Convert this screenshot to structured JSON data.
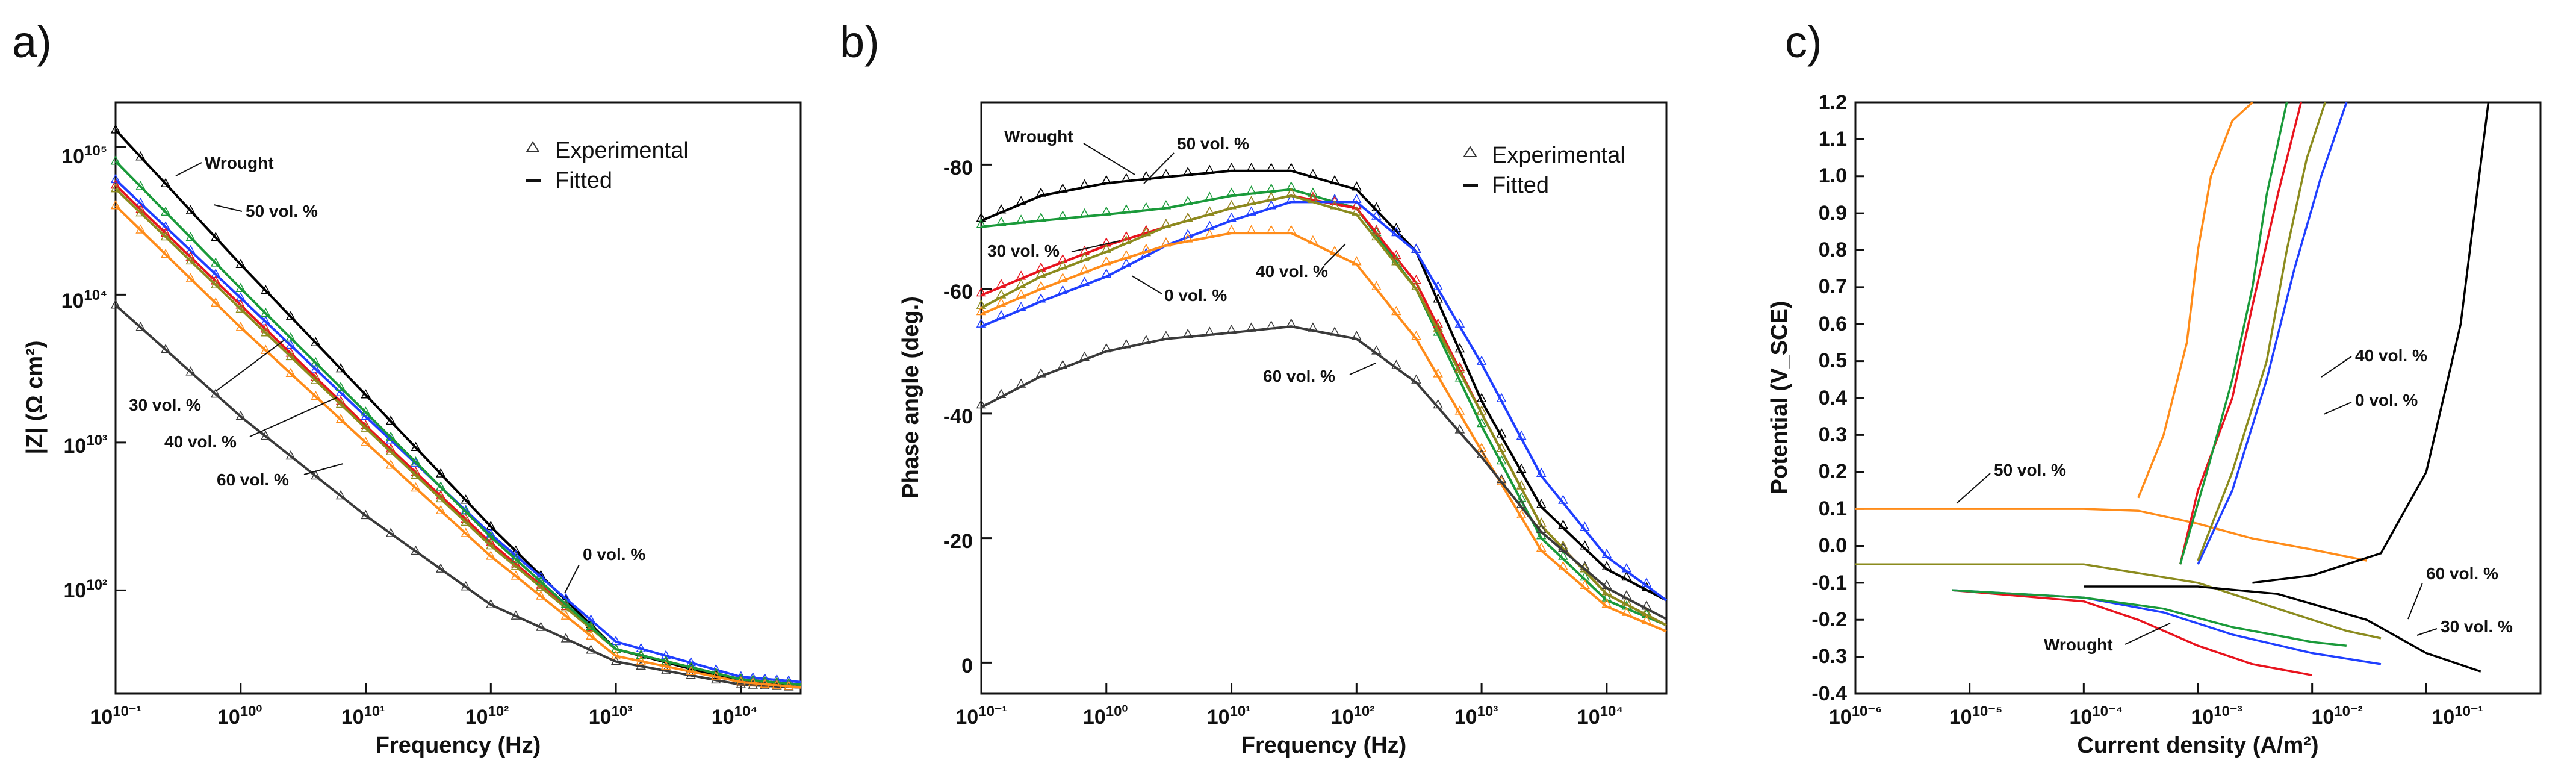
{
  "panel_labels": [
    "a)",
    "b)",
    "c)"
  ],
  "chart_data": [
    {
      "type": "line",
      "panel": "a)",
      "title": "",
      "xlabel": "Frequency (Hz)",
      "ylabel": "|Z| (Ω cm²)",
      "x_scale": "log",
      "y_scale": "log",
      "xlim": [
        0.1,
        30000
      ],
      "ylim": [
        20,
        200000
      ],
      "x_tick_labels": [
        "10⁻¹",
        "10⁰",
        "10¹",
        "10²",
        "10³",
        "10⁴"
      ],
      "y_tick_labels": [
        "10²",
        "10³",
        "10⁴",
        "10⁵"
      ],
      "legend": [
        {
          "label": "Experimental",
          "marker": "triangle-open"
        },
        {
          "label": "Fitted",
          "marker": "line"
        }
      ],
      "legend_position": "top-right",
      "series": [
        {
          "name": "Wrought",
          "color": "#000000",
          "x": [
            0.1,
            1,
            10,
            100,
            1000,
            10000,
            30000
          ],
          "y": [
            130000,
            16000,
            2100,
            270,
            40,
            24,
            23
          ]
        },
        {
          "name": "0 vol. %",
          "color": "#1f3fff",
          "x": [
            0.1,
            1,
            10,
            100,
            1000,
            10000,
            30000
          ],
          "y": [
            60000,
            9500,
            1500,
            240,
            45,
            26,
            24
          ]
        },
        {
          "name": "30 vol. %",
          "color": "#e8141e",
          "x": [
            0.1,
            1,
            10,
            100,
            1000,
            10000,
            30000
          ],
          "y": [
            55000,
            8500,
            1300,
            210,
            40,
            25,
            23
          ]
        },
        {
          "name": "40 vol. %",
          "color": "#8b8b1e",
          "x": [
            0.1,
            1,
            10,
            100,
            1000,
            10000,
            30000
          ],
          "y": [
            52000,
            8000,
            1250,
            200,
            40,
            25,
            23
          ]
        },
        {
          "name": "50 vol. %",
          "color": "#1a9a3a",
          "x": [
            0.1,
            1,
            10,
            100,
            1000,
            10000,
            30000
          ],
          "y": [
            80000,
            11000,
            1600,
            230,
            40,
            25,
            23
          ]
        },
        {
          "name": "60 vol. %",
          "color": "#3a3a3a",
          "x": [
            0.1,
            1,
            10,
            100,
            1000,
            10000,
            30000
          ],
          "y": [
            8500,
            1500,
            320,
            80,
            33,
            23,
            22
          ]
        },
        {
          "name": "orange (unlabeled)",
          "color": "#ff8c1a",
          "x": [
            0.1,
            1,
            10,
            100,
            1000,
            10000,
            30000
          ],
          "y": [
            40000,
            6000,
            1000,
            170,
            36,
            24,
            22
          ]
        }
      ],
      "annotations": [
        "Wrought",
        "50 vol. %",
        "30 vol. %",
        "40 vol. %",
        "60 vol. %",
        "0 vol. %"
      ]
    },
    {
      "type": "line",
      "panel": "b)",
      "title": "",
      "xlabel": "Frequency (Hz)",
      "ylabel": "Phase angle (deg.)",
      "x_scale": "log",
      "y_scale": "linear",
      "xlim": [
        0.1,
        30000
      ],
      "ylim": [
        5,
        -90
      ],
      "x_tick_labels": [
        "10⁻¹",
        "10⁰",
        "10¹",
        "10²",
        "10³",
        "10⁴"
      ],
      "y_tick_labels": [
        "-80",
        "-60",
        "-40",
        "-20",
        "0"
      ],
      "legend": [
        {
          "label": "Experimental",
          "marker": "triangle-open"
        },
        {
          "label": "Fitted",
          "marker": "line"
        }
      ],
      "legend_position": "top-right",
      "series": [
        {
          "name": "Wrought",
          "color": "#000000",
          "x": [
            0.1,
            0.3,
            1,
            3,
            10,
            30,
            100,
            300,
            1000,
            3000,
            10000,
            30000
          ],
          "y": [
            -71,
            -75,
            -77,
            -78,
            -79,
            -79,
            -76,
            -66,
            -42,
            -25,
            -15,
            -10
          ]
        },
        {
          "name": "50 vol. %",
          "color": "#1a9a3a",
          "x": [
            0.1,
            0.3,
            1,
            3,
            10,
            30,
            100,
            300,
            1000,
            3000,
            10000,
            30000
          ],
          "y": [
            -70,
            -71,
            -72,
            -73,
            -75,
            -76,
            -73,
            -60,
            -38,
            -20,
            -10,
            -6
          ]
        },
        {
          "name": "30 vol. %",
          "color": "#e8141e",
          "x": [
            0.1,
            0.3,
            1,
            3,
            10,
            30,
            100,
            300,
            1000,
            3000,
            10000,
            30000
          ],
          "y": [
            -59,
            -63,
            -67,
            -70,
            -73,
            -75,
            -73,
            -61,
            -40,
            -22,
            -11,
            -6
          ]
        },
        {
          "name": "0 vol. %",
          "color": "#1f3fff",
          "x": [
            0.1,
            0.3,
            1,
            3,
            10,
            30,
            100,
            300,
            1000,
            3000,
            10000,
            30000
          ],
          "y": [
            -54,
            -58,
            -62,
            -67,
            -71,
            -74,
            -74,
            -66,
            -48,
            -30,
            -17,
            -10
          ]
        },
        {
          "name": "40 vol. %",
          "color": "#8b8b1e",
          "x": [
            0.1,
            0.3,
            1,
            3,
            10,
            30,
            100,
            300,
            1000,
            3000,
            10000,
            30000
          ],
          "y": [
            -57,
            -62,
            -66,
            -70,
            -73,
            -75,
            -72,
            -60,
            -40,
            -22,
            -11,
            -6
          ]
        },
        {
          "name": "orange (unlabeled)",
          "color": "#ff8c1a",
          "x": [
            0.1,
            0.3,
            1,
            3,
            10,
            30,
            100,
            300,
            1000,
            3000,
            10000,
            30000
          ],
          "y": [
            -56,
            -60,
            -64,
            -67,
            -69,
            -69,
            -64,
            -52,
            -34,
            -18,
            -9,
            -5
          ]
        },
        {
          "name": "60 vol. %",
          "color": "#3a3a3a",
          "x": [
            0.1,
            0.3,
            1,
            3,
            10,
            30,
            100,
            300,
            1000,
            3000,
            10000,
            30000
          ],
          "y": [
            -41,
            -46,
            -50,
            -52,
            -53,
            -54,
            -52,
            -45,
            -33,
            -21,
            -12,
            -7
          ]
        }
      ],
      "annotations": [
        "Wrought",
        "50 vol. %",
        "30 vol. %",
        "0 vol. %",
        "40 vol. %",
        "60 vol. %"
      ]
    },
    {
      "type": "line",
      "panel": "c)",
      "title": "",
      "xlabel": "Current density (A/m²)",
      "ylabel": "Potential (V_SCE)",
      "x_scale": "log",
      "y_scale": "linear",
      "xlim": [
        1e-06,
        1
      ],
      "ylim": [
        -0.4,
        1.2
      ],
      "x_tick_labels": [
        "10⁻⁶",
        "10⁻⁵",
        "10⁻⁴",
        "10⁻³",
        "10⁻²",
        "10⁻¹"
      ],
      "y_tick_labels": [
        "-0.4",
        "-0.3",
        "-0.2",
        "-0.1",
        "0.0",
        "0.1",
        "0.2",
        "0.3",
        "0.4",
        "0.5",
        "0.6",
        "0.7",
        "0.8",
        "0.9",
        "1.0",
        "1.1",
        "1.2"
      ],
      "series": [
        {
          "name": "50 vol. %",
          "color": "#ff8c1a",
          "cathodic": {
            "x": [
              1e-06,
              0.0001,
              0.0003,
              0.001,
              0.003,
              0.01,
              0.03
            ],
            "y": [
              0.1,
              0.1,
              0.095,
              0.06,
              0.02,
              -0.01,
              -0.04
            ]
          },
          "anodic": {
            "x": [
              0.0003,
              0.0005,
              0.0008,
              0.001,
              0.0013,
              0.002,
              0.003
            ],
            "y": [
              0.13,
              0.3,
              0.55,
              0.8,
              1.0,
              1.15,
              1.2
            ]
          }
        },
        {
          "name": "Wrought",
          "color": "#e8141e",
          "cathodic": {
            "x": [
              7e-06,
              0.0001,
              0.0003,
              0.001,
              0.003,
              0.01
            ],
            "y": [
              -0.12,
              -0.15,
              -0.2,
              -0.27,
              -0.32,
              -0.35
            ]
          },
          "anodic": {
            "x": [
              0.0007,
              0.001,
              0.002,
              0.003,
              0.005,
              0.008
            ],
            "y": [
              -0.05,
              0.15,
              0.4,
              0.65,
              0.95,
              1.2
            ]
          }
        },
        {
          "name": "0 vol. %",
          "color": "#1f3fff",
          "cathodic": {
            "x": [
              7e-06,
              0.0001,
              0.0005,
              0.002,
              0.01,
              0.04
            ],
            "y": [
              -0.12,
              -0.14,
              -0.18,
              -0.24,
              -0.29,
              -0.32
            ]
          },
          "anodic": {
            "x": [
              0.001,
              0.002,
              0.004,
              0.007,
              0.012,
              0.02
            ],
            "y": [
              -0.05,
              0.15,
              0.45,
              0.75,
              1.0,
              1.2
            ]
          }
        },
        {
          "name": "30 vol. %",
          "color": "#1a9a3a",
          "cathodic": {
            "x": [
              7e-06,
              0.0001,
              0.0005,
              0.002,
              0.01,
              0.02
            ],
            "y": [
              -0.12,
              -0.14,
              -0.17,
              -0.22,
              -0.26,
              -0.27
            ]
          },
          "anodic": {
            "x": [
              0.0007,
              0.0012,
              0.002,
              0.003,
              0.004,
              0.006
            ],
            "y": [
              -0.05,
              0.2,
              0.45,
              0.7,
              0.95,
              1.2
            ]
          }
        },
        {
          "name": "40 vol. %",
          "color": "#8b8b1e",
          "cathodic": {
            "x": [
              1e-06,
              0.0001,
              0.001,
              0.005,
              0.02,
              0.04
            ],
            "y": [
              -0.05,
              -0.05,
              -0.1,
              -0.17,
              -0.23,
              -0.25
            ]
          },
          "anodic": {
            "x": [
              0.001,
              0.002,
              0.004,
              0.006,
              0.009,
              0.013
            ],
            "y": [
              -0.04,
              0.2,
              0.5,
              0.8,
              1.05,
              1.2
            ]
          }
        },
        {
          "name": "60 vol. %",
          "color": "#000000",
          "cathodic": {
            "x": [
              0.0001,
              0.001,
              0.005,
              0.03,
              0.1,
              0.3
            ],
            "y": [
              -0.11,
              -0.11,
              -0.13,
              -0.2,
              -0.29,
              -0.34
            ]
          },
          "anodic": {
            "x": [
              0.003,
              0.01,
              0.04,
              0.1,
              0.2,
              0.35
            ],
            "y": [
              -0.1,
              -0.08,
              -0.02,
              0.2,
              0.6,
              1.2
            ]
          }
        }
      ],
      "annotations": [
        "50 vol. %",
        "40 vol. %",
        "0 vol. %",
        "60 vol. %",
        "30 vol. %",
        "Wrought"
      ]
    }
  ]
}
